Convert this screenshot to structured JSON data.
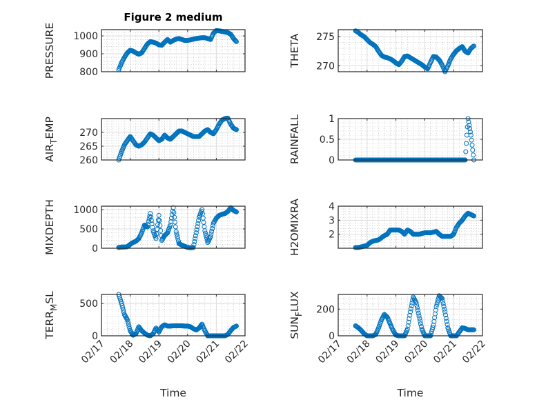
{
  "figure_title": "Figure 2 medium",
  "marker_color": "#0072BD",
  "chart_data": [
    {
      "type": "scatter",
      "ylabel": {
        "main": "PRESSURE",
        "sub": "",
        "rest": ""
      },
      "ylim": [
        800,
        1035
      ],
      "yticks": [
        800,
        900,
        1000
      ],
      "ytick_labels": [
        "800",
        "900",
        "1000"
      ],
      "x_start": 17.6,
      "x_step": 0.1,
      "values": [
        810,
        850,
        880,
        905,
        920,
        915,
        905,
        898,
        905,
        930,
        955,
        968,
        965,
        960,
        950,
        948,
        965,
        980,
        965,
        975,
        982,
        985,
        980,
        975,
        975,
        978,
        982,
        985,
        988,
        990,
        990,
        985,
        980,
        1015,
        1030,
        1028,
        1025,
        1022,
        1018,
        1010,
        985,
        968
      ]
    },
    {
      "type": "scatter",
      "ylabel": {
        "main": "THETA",
        "sub": "",
        "rest": ""
      },
      "ylim": [
        269,
        276.2
      ],
      "yticks": [
        270,
        275
      ],
      "ytick_labels": [
        "270",
        "275"
      ],
      "x_start": 17.6,
      "x_step": 0.1,
      "values": [
        276,
        275.7,
        275.3,
        275,
        274.5,
        274,
        273.7,
        273.3,
        272.5,
        271.8,
        271.5,
        271.4,
        271.2,
        270.9,
        270.5,
        270.2,
        270.8,
        271.6,
        271.7,
        271.4,
        271.1,
        270.8,
        270.5,
        270.2,
        269.8,
        269.5,
        270.6,
        271.6,
        271.5,
        271,
        270.2,
        269,
        270,
        271.2,
        272,
        272.6,
        273,
        273.3,
        272.5,
        272.2,
        273,
        273.4
      ]
    },
    {
      "type": "scatter",
      "ylabel": {
        "main": "AIR",
        "sub": "T",
        "rest": "EMP"
      },
      "ylim": [
        260,
        275
      ],
      "yticks": [
        260,
        265,
        270
      ],
      "ytick_labels": [
        "260",
        "265",
        "270"
      ],
      "x_start": 17.6,
      "x_step": 0.1,
      "values": [
        260,
        263,
        265.5,
        267,
        268.5,
        267,
        265.5,
        265,
        265.5,
        266.5,
        268,
        269.5,
        269,
        268,
        267,
        267.5,
        269,
        268,
        267.5,
        268.5,
        269.5,
        270.5,
        270.5,
        270,
        269.5,
        269,
        268.5,
        268.5,
        268.5,
        269.5,
        270.5,
        271,
        270,
        269.5,
        271,
        273,
        274.5,
        275,
        275.2,
        273,
        271.5,
        271
      ]
    },
    {
      "type": "scatter",
      "ylabel": {
        "main": "RAINFALL",
        "sub": "",
        "rest": ""
      },
      "ylim": [
        0,
        1
      ],
      "yticks": [
        0,
        0.5,
        1
      ],
      "ytick_labels": [
        "0",
        "0.5",
        "1"
      ],
      "x_start": 17.6,
      "x_step": 0.1,
      "values": [
        0,
        0,
        0,
        0,
        0,
        0,
        0,
        0,
        0,
        0,
        0,
        0,
        0,
        0,
        0,
        0,
        0,
        0,
        0,
        0,
        0,
        0,
        0,
        0,
        0,
        0,
        0,
        0,
        0,
        0,
        0,
        0,
        0,
        0,
        0,
        0,
        0,
        0,
        0,
        1,
        0.6,
        0
      ]
    },
    {
      "type": "scatter",
      "ylabel": {
        "main": "MIXDEPTH",
        "sub": "",
        "rest": ""
      },
      "ylim": [
        0,
        1090
      ],
      "yticks": [
        0,
        500,
        1000
      ],
      "ytick_labels": [
        "0",
        "500",
        "1000"
      ],
      "x_start": 17.6,
      "x_step": 0.1,
      "values": [
        20,
        30,
        30,
        40,
        100,
        150,
        180,
        250,
        400,
        600,
        550,
        900,
        450,
        250,
        850,
        200,
        330,
        400,
        600,
        1050,
        430,
        120,
        80,
        50,
        20,
        10,
        20,
        400,
        800,
        1000,
        450,
        150,
        300,
        650,
        780,
        850,
        880,
        900,
        950,
        1050,
        980,
        940
      ]
    },
    {
      "type": "scatter",
      "ylabel": {
        "main": "H2OMIXRA",
        "sub": "",
        "rest": ""
      },
      "ylim": [
        1,
        4
      ],
      "yticks": [
        2,
        3,
        4
      ],
      "ytick_labels": [
        "2",
        "3",
        "4"
      ],
      "x_start": 17.6,
      "x_step": 0.1,
      "values": [
        1.05,
        1.05,
        1.1,
        1.15,
        1.2,
        1.4,
        1.5,
        1.55,
        1.6,
        1.75,
        1.9,
        2.0,
        2.3,
        2.3,
        2.3,
        2.3,
        2.2,
        2.0,
        2.3,
        2.2,
        2.0,
        2.0,
        2.0,
        2.05,
        2.1,
        2.1,
        2.1,
        2.15,
        2.2,
        2.0,
        1.85,
        1.85,
        1.85,
        1.85,
        2.0,
        2.5,
        2.8,
        3.0,
        3.3,
        3.5,
        3.4,
        3.3
      ]
    },
    {
      "type": "scatter",
      "ylabel": {
        "main": "TERR",
        "sub": "M",
        "rest": "SL"
      },
      "ylim": [
        0,
        640
      ],
      "yticks": [
        0,
        500
      ],
      "ytick_labels": [
        "0",
        "500"
      ],
      "x_start": 17.6,
      "x_step": 0.1,
      "values": [
        640,
        500,
        330,
        250,
        80,
        10,
        30,
        140,
        80,
        40,
        10,
        0,
        30,
        120,
        60,
        140,
        170,
        150,
        150,
        155,
        155,
        155,
        155,
        150,
        150,
        140,
        110,
        90,
        120,
        180,
        80,
        0,
        0,
        0,
        0,
        0,
        0,
        0,
        20,
        80,
        130,
        150
      ],
      "xticks": [
        17,
        18,
        19,
        20,
        21,
        22
      ],
      "xtick_labels": [
        "02/17",
        "02/18",
        "02/19",
        "02/20",
        "02/21",
        "02/22"
      ],
      "xlabel": "Time"
    },
    {
      "type": "scatter",
      "ylabel": {
        "main": "SUN",
        "sub": "F",
        "rest": "LUX"
      },
      "ylim": [
        0,
        310
      ],
      "yticks": [
        0,
        200
      ],
      "ytick_labels": [
        "0",
        "200"
      ],
      "x_start": 17.6,
      "x_step": 0.1,
      "values": [
        75,
        60,
        40,
        15,
        0,
        0,
        0,
        10,
        60,
        120,
        160,
        140,
        90,
        40,
        5,
        0,
        0,
        0,
        50,
        180,
        290,
        250,
        150,
        50,
        0,
        0,
        0,
        80,
        220,
        300,
        280,
        180,
        60,
        0,
        0,
        0,
        30,
        60,
        55,
        45,
        45,
        45
      ],
      "xticks": [
        17,
        18,
        19,
        20,
        21,
        22
      ],
      "xtick_labels": [
        "02/17",
        "02/18",
        "02/19",
        "02/20",
        "02/21",
        "02/22"
      ],
      "xlabel": "Time"
    }
  ]
}
